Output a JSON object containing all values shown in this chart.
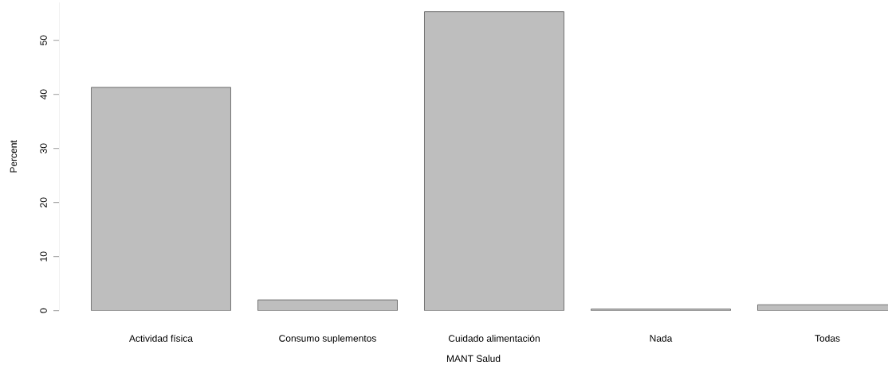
{
  "chart_data": {
    "type": "bar",
    "xlabel": "MANT Salud",
    "ylabel": "Percent",
    "categories": [
      "Actividad física",
      "Consumo suplementos",
      "Cuidado alimentación",
      "Nada",
      "Todas"
    ],
    "values": [
      41.3,
      2.0,
      55.3,
      0.3,
      1.1
    ],
    "color": "#bebebe",
    "ylim": [
      0,
      57
    ],
    "yticks": [
      0,
      10,
      20,
      30,
      40,
      50
    ],
    "grid": false
  }
}
